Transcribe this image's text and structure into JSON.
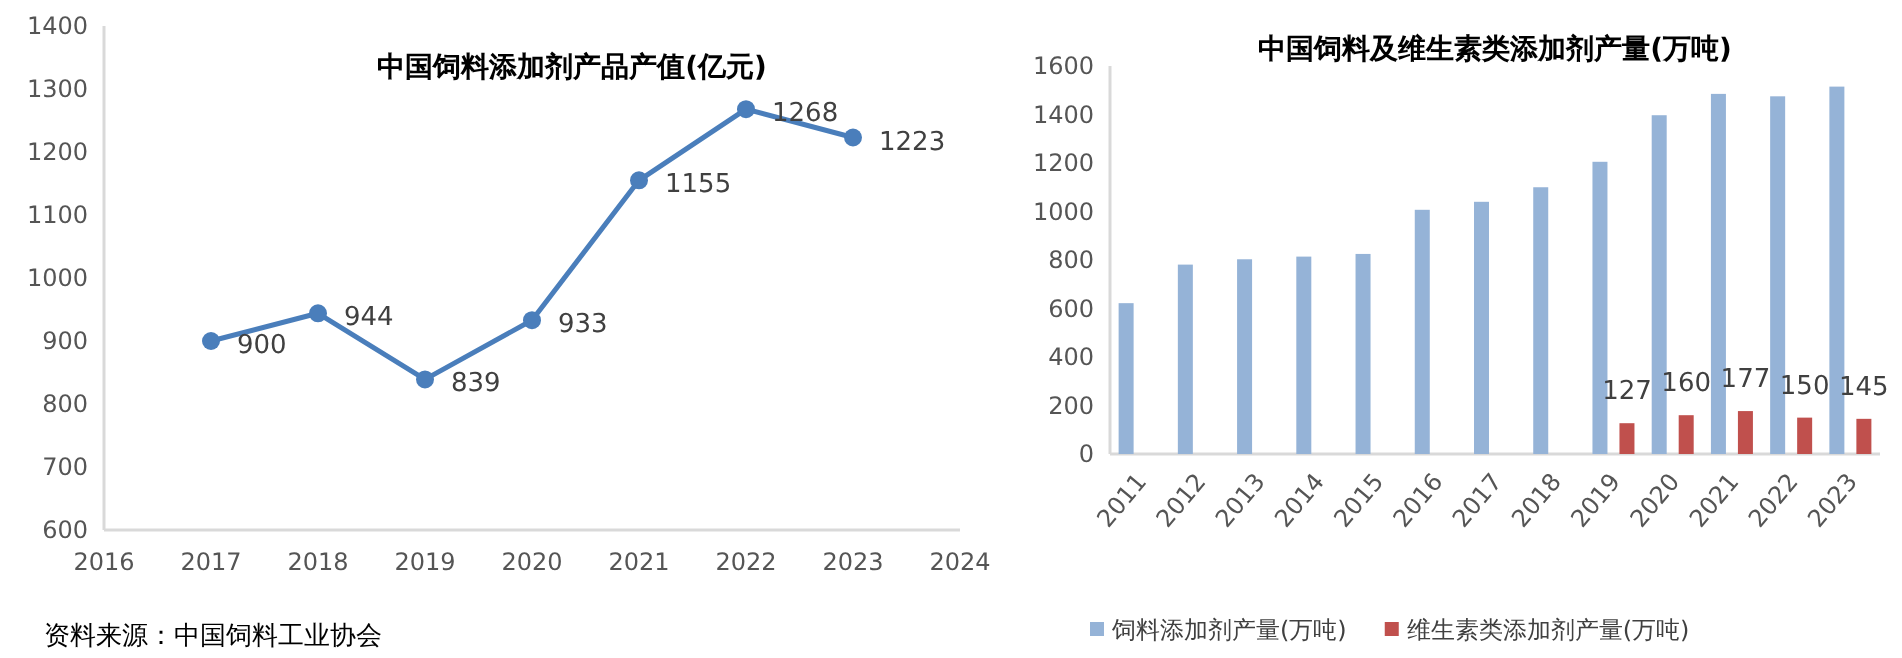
{
  "chart_data": [
    {
      "type": "line",
      "title": "中国饲料添加剂产品产值(亿元)",
      "x": [
        2017,
        2018,
        2019,
        2020,
        2021,
        2022,
        2023
      ],
      "xlim": [
        2016,
        2024
      ],
      "xticks": [
        2016,
        2017,
        2018,
        2019,
        2020,
        2021,
        2022,
        2023,
        2024
      ],
      "ylim": [
        600,
        1400
      ],
      "yticks": [
        600,
        700,
        800,
        900,
        1000,
        1100,
        1200,
        1300,
        1400
      ],
      "marker": "circle",
      "line_style": "solid",
      "data_labels": true,
      "series": [
        {
          "color": "#4a7ebb",
          "values": [
            900,
            944,
            839,
            933,
            1155,
            1268,
            1223
          ]
        }
      ],
      "annotations": [
        "资料来源：中国饲料工业协会"
      ]
    },
    {
      "type": "bar",
      "title": "中国饲料及维生素类添加剂产量(万吨)",
      "categories": [
        "2011",
        "2012",
        "2013",
        "2014",
        "2015",
        "2016",
        "2017",
        "2018",
        "2019",
        "2020",
        "2021",
        "2022",
        "2023"
      ],
      "ylim": [
        0,
        1600
      ],
      "yticks": [
        0,
        200,
        400,
        600,
        800,
        1000,
        1200,
        1400,
        1600
      ],
      "legend": "bottom",
      "series": [
        {
          "name": "饲料添加剂产量(万吨)",
          "color": "#95b3d7",
          "values": [
            622,
            781,
            803,
            814,
            825,
            1007,
            1040,
            1100,
            1205,
            1397,
            1485,
            1475,
            1515
          ]
        },
        {
          "name": "维生素类添加剂产量(万吨)",
          "color": "#c0504d",
          "values": [
            null,
            null,
            null,
            null,
            null,
            null,
            null,
            null,
            127,
            160,
            177,
            150,
            145
          ],
          "value_labels": [
            null,
            null,
            null,
            null,
            null,
            null,
            null,
            null,
            "127",
            "160",
            "177",
            "150",
            "145"
          ]
        }
      ]
    }
  ]
}
